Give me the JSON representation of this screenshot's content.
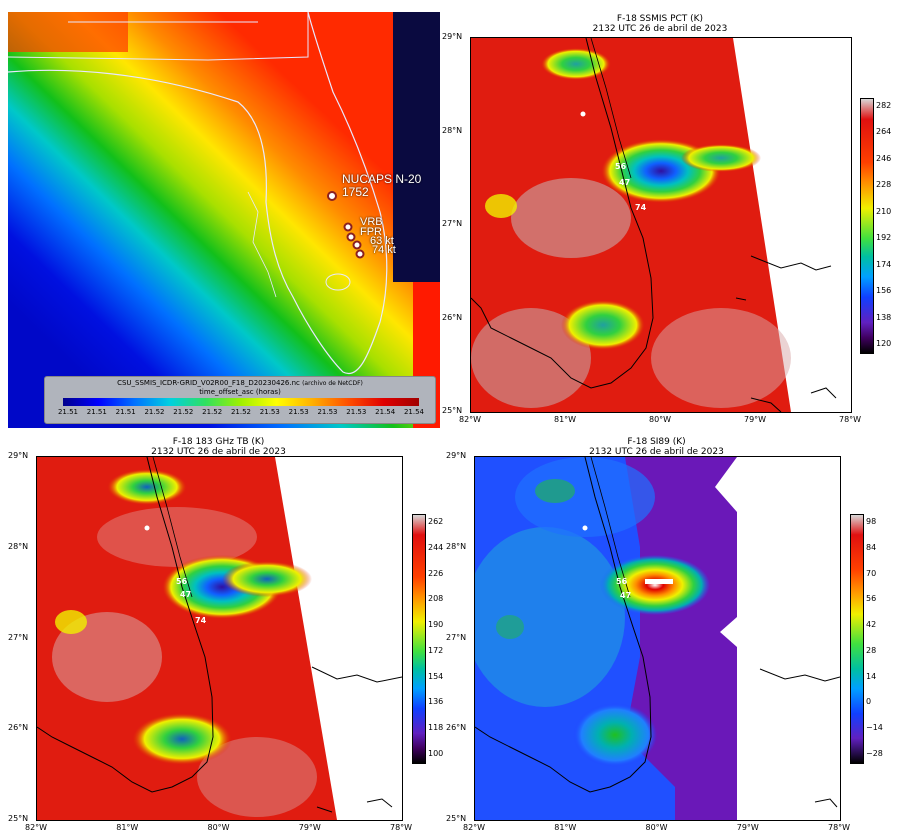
{
  "topleft": {
    "colorbar_title": "CSU_SSMIS_ICDR-GRID_V02R00_F18_D20230426.nc",
    "colorbar_title_note": "(archivo de NetCDF)",
    "colorbar_var": "time_offset_asc (horas)",
    "colorbar_ticks": [
      "21.51",
      "21.51",
      "21.51",
      "21.52",
      "21.52",
      "21.52",
      "21.52",
      "21.53",
      "21.53",
      "21.53",
      "21.53",
      "21.54",
      "21.54"
    ],
    "label_nucaps": "NUCAPS N-20",
    "label_time": "1752",
    "label_vrb": "VRB",
    "label_fpr": "FPR",
    "label_63": "63 kt",
    "label_74": "74 kt"
  },
  "topright": {
    "title_line1": "F-18 SSMIS PCT (K)",
    "title_line2": "2132 UTC 26 de abril de 2023",
    "colorbar_ticks": [
      "282",
      "264",
      "246",
      "228",
      "210",
      "192",
      "174",
      "156",
      "138",
      "120"
    ],
    "label_56": "56",
    "label_47": "47",
    "label_74": "74"
  },
  "bottomleft": {
    "title_line1": "F-18 183 GHz TB (K)",
    "title_line2": "2132 UTC 26 de abril de 2023",
    "colorbar_ticks": [
      "262",
      "244",
      "226",
      "208",
      "190",
      "172",
      "154",
      "136",
      "118",
      "100"
    ],
    "label_56": "56",
    "label_47": "47",
    "label_74": "74"
  },
  "bottomright": {
    "title_line1": "F-18 SI89 (K)",
    "title_line2": "2132 UTC 26 de abril de 2023",
    "colorbar_ticks": [
      "98",
      "84",
      "70",
      "56",
      "42",
      "28",
      "14",
      "0",
      "−14",
      "−28"
    ],
    "label_56": "56",
    "label_47": "47"
  },
  "axes": {
    "y_ticks": [
      "29°N",
      "28°N",
      "27°N",
      "26°N",
      "25°N"
    ],
    "x_ticks": [
      "82°W",
      "81°W",
      "80°W",
      "79°W",
      "78°W"
    ]
  }
}
